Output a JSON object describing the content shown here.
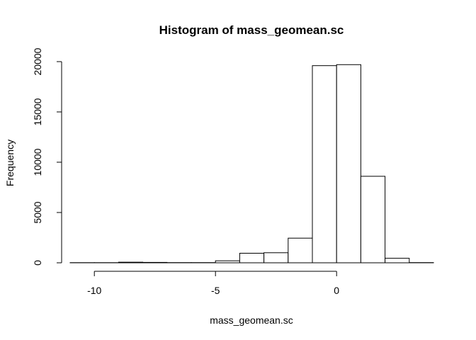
{
  "chart_data": {
    "type": "bar",
    "title": "Histogram of mass_geomean.sc",
    "xlabel": "mass_geomean.sc",
    "ylabel": "Frequency",
    "bins": [
      {
        "start": -11,
        "end": -10,
        "count": 15
      },
      {
        "start": -10,
        "end": -9,
        "count": 15
      },
      {
        "start": -9,
        "end": -8,
        "count": 60
      },
      {
        "start": -8,
        "end": -7,
        "count": 40
      },
      {
        "start": -7,
        "end": -6,
        "count": 20
      },
      {
        "start": -6,
        "end": -5,
        "count": 20
      },
      {
        "start": -5,
        "end": -4,
        "count": 200
      },
      {
        "start": -4,
        "end": -3,
        "count": 950
      },
      {
        "start": -3,
        "end": -2,
        "count": 1000
      },
      {
        "start": -2,
        "end": -1,
        "count": 2450
      },
      {
        "start": -1,
        "end": 0,
        "count": 19600
      },
      {
        "start": 0,
        "end": 1,
        "count": 19700
      },
      {
        "start": 1,
        "end": 2,
        "count": 8600
      },
      {
        "start": 2,
        "end": 3,
        "count": 450
      },
      {
        "start": 3,
        "end": 4,
        "count": 20
      }
    ],
    "x_ticks": [
      -10,
      -5,
      0
    ],
    "x_tick_labels": [
      "-10",
      "-5",
      "0"
    ],
    "y_ticks": [
      0,
      5000,
      10000,
      15000,
      20000
    ],
    "y_tick_labels": [
      "0",
      "5000",
      "10000",
      "15000",
      "20000"
    ],
    "xlim": [
      -11,
      4
    ],
    "ylim": [
      0,
      20000
    ],
    "grid": false
  }
}
